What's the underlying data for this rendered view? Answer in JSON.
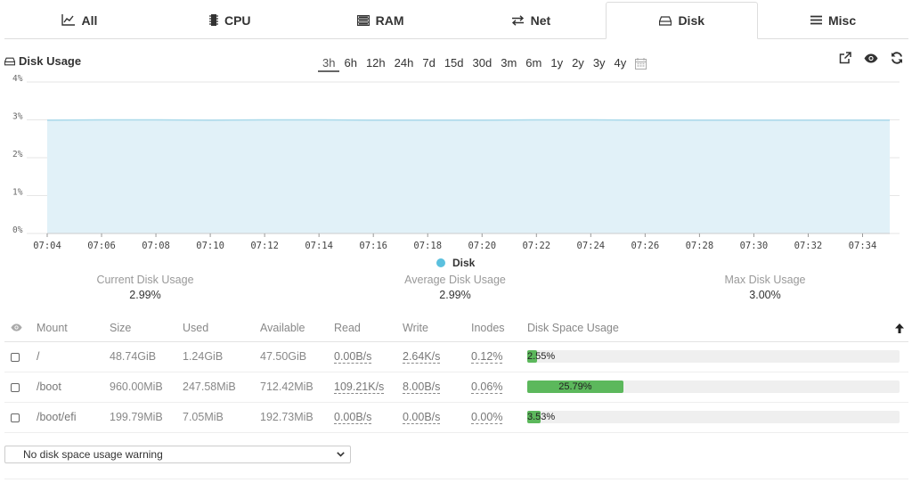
{
  "tabs": [
    {
      "label": "All",
      "icon": "line-chart-icon",
      "active": false
    },
    {
      "label": "CPU",
      "icon": "chip-icon",
      "active": false
    },
    {
      "label": "RAM",
      "icon": "memory-icon",
      "active": false
    },
    {
      "label": "Net",
      "icon": "exchange-icon",
      "active": false
    },
    {
      "label": "Disk",
      "icon": "hdd-icon",
      "active": true
    },
    {
      "label": "Misc",
      "icon": "bars-icon",
      "active": false
    }
  ],
  "chart": {
    "title": "Disk Usage",
    "ranges": [
      "3h",
      "6h",
      "12h",
      "24h",
      "7d",
      "15d",
      "30d",
      "3m",
      "6m",
      "1y",
      "2y",
      "3y",
      "4y"
    ],
    "active_range": "3h"
  },
  "chart_data": {
    "type": "area",
    "x": [
      "07:04",
      "07:06",
      "07:08",
      "07:10",
      "07:12",
      "07:14",
      "07:16",
      "07:18",
      "07:20",
      "07:22",
      "07:24",
      "07:26",
      "07:28",
      "07:30",
      "07:32",
      "07:34"
    ],
    "series": [
      {
        "name": "Disk",
        "values": [
          2.99,
          3.0,
          3.0,
          2.99,
          3.0,
          3.0,
          2.99,
          2.99,
          2.99,
          3.0,
          3.0,
          2.99,
          2.99,
          2.99,
          2.99,
          2.99
        ]
      }
    ],
    "yticks": [
      "0%",
      "1%",
      "2%",
      "3%",
      "4%"
    ],
    "ylim": [
      0,
      4
    ],
    "legend": "bottom-center",
    "grid": true,
    "line_color": "#a9d9ea",
    "fill_color": "#e1f1f8",
    "legend_color": "#5bc0de"
  },
  "stats": [
    {
      "label": "Current Disk Usage",
      "value": "2.99%"
    },
    {
      "label": "Average Disk Usage",
      "value": "2.99%"
    },
    {
      "label": "Max Disk Usage",
      "value": "3.00%"
    }
  ],
  "table": {
    "headers": [
      "Mount",
      "Size",
      "Used",
      "Available",
      "Read",
      "Write",
      "Inodes",
      "Disk Space Usage"
    ],
    "rows": [
      {
        "mount": "/",
        "size": "48.74GiB",
        "used": "1.24GiB",
        "available": "47.50GiB",
        "read": "0.00B/s",
        "write": "2.64K/s",
        "inodes": "0.12%",
        "usage_label": "2.55%",
        "usage_pct": 2.55
      },
      {
        "mount": "/boot",
        "size": "960.00MiB",
        "used": "247.58MiB",
        "available": "712.42MiB",
        "read": "109.21K/s",
        "write": "8.00B/s",
        "inodes": "0.06%",
        "usage_label": "25.79%",
        "usage_pct": 25.79
      },
      {
        "mount": "/boot/efi",
        "size": "199.79MiB",
        "used": "7.05MiB",
        "available": "192.73MiB",
        "read": "0.00B/s",
        "write": "0.00B/s",
        "inodes": "0.00%",
        "usage_label": "3.53%",
        "usage_pct": 3.53
      }
    ]
  },
  "warning_select": {
    "value": "No disk space usage warning"
  }
}
